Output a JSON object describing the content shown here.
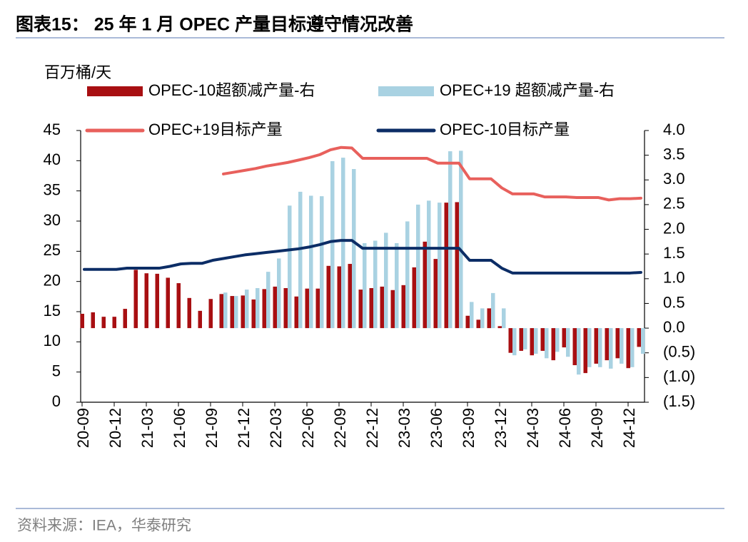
{
  "chart_data": {
    "type": "combo",
    "title": "图表15： 25 年 1 月 OPEC 产量目标遵守情况改善",
    "y_label": "百万桶/天",
    "source": "资料来源：IEA，华泰研究",
    "categories": [
      "20-09",
      null,
      null,
      "20-12",
      null,
      null,
      "21-03",
      null,
      null,
      "21-06",
      null,
      null,
      "21-09",
      null,
      null,
      "21-12",
      null,
      null,
      "22-03",
      null,
      null,
      "22-06",
      null,
      null,
      "22-09",
      null,
      null,
      "22-12",
      null,
      null,
      "23-03",
      null,
      null,
      "23-06",
      null,
      null,
      "23-09",
      null,
      null,
      "23-12",
      null,
      null,
      "24-03",
      null,
      null,
      "24-06",
      null,
      null,
      "24-09",
      null,
      null,
      "24-12",
      null
    ],
    "ylim": [
      0,
      45
    ],
    "yticks": [
      0,
      5,
      10,
      15,
      20,
      25,
      30,
      35,
      40,
      45
    ],
    "y2lim": [
      -1.5,
      4.0
    ],
    "y2ticks": [
      {
        "value": -1.5,
        "label": "(1.5)"
      },
      {
        "value": -1,
        "label": "(1.0)"
      },
      {
        "value": -0.5,
        "label": "(0.5)"
      },
      {
        "value": 0,
        "label": "0.0"
      },
      {
        "value": 0.5,
        "label": "0.5"
      },
      {
        "value": 1,
        "label": "1.0"
      },
      {
        "value": 1.5,
        "label": "1.5"
      },
      {
        "value": 2,
        "label": "2.0"
      },
      {
        "value": 2.5,
        "label": "2.5"
      },
      {
        "value": 3,
        "label": "3.0"
      },
      {
        "value": 3.5,
        "label": "3.5"
      },
      {
        "value": 4,
        "label": "4.0"
      }
    ],
    "series": [
      {
        "name": "OPEC-10超额减产量-右",
        "type": "bar",
        "axis": "y2",
        "color": "#a80f12",
        "values": [
          0.29,
          0.32,
          0.23,
          0.23,
          0.39,
          1.18,
          1.11,
          1.1,
          1.02,
          0.91,
          0.61,
          0.35,
          0.59,
          0.69,
          0.65,
          0.66,
          0.58,
          0.79,
          0.84,
          0.81,
          0.64,
          0.8,
          0.8,
          1.26,
          1.25,
          1.3,
          0.78,
          0.81,
          0.84,
          0.77,
          0.87,
          1.23,
          1.75,
          1.4,
          2.54,
          2.55,
          0.25,
          0.17,
          0.4,
          0.04,
          -0.5,
          -0.46,
          -0.55,
          -0.46,
          -0.65,
          -0.39,
          -0.75,
          -0.91,
          -0.72,
          -0.65,
          -0.61,
          -0.81,
          -0.38
        ]
      },
      {
        "name": "OPEC+19 超额减产量-右",
        "type": "bar",
        "axis": "y2",
        "color": "#a9d2e2",
        "values": [
          null,
          null,
          null,
          null,
          null,
          null,
          null,
          null,
          null,
          null,
          null,
          null,
          null,
          0.72,
          0.65,
          0.78,
          0.81,
          1.14,
          1.41,
          2.48,
          2.76,
          2.68,
          2.67,
          3.38,
          3.45,
          3.22,
          1.72,
          1.77,
          1.93,
          1.72,
          2.16,
          2.5,
          2.58,
          2.54,
          3.58,
          3.59,
          0.53,
          0.4,
          0.71,
          0.4,
          -0.55,
          -0.43,
          -0.52,
          -0.61,
          -0.48,
          -0.58,
          -0.94,
          -0.79,
          -0.79,
          -0.82,
          -0.72,
          -0.79,
          -0.52
        ]
      },
      {
        "name": "OPEC+19目标产量",
        "type": "line",
        "color": "#e8605c",
        "values": [
          null,
          null,
          null,
          null,
          null,
          null,
          null,
          null,
          null,
          null,
          null,
          null,
          null,
          37.8,
          38.1,
          38.4,
          38.7,
          39.1,
          39.4,
          39.7,
          40.1,
          40.5,
          41.0,
          41.8,
          42.2,
          42.1,
          40.4,
          40.4,
          40.4,
          40.4,
          40.4,
          40.4,
          40.4,
          39.6,
          39.6,
          39.6,
          37.0,
          37.0,
          37.0,
          35.5,
          34.5,
          34.5,
          34.5,
          34.0,
          34.0,
          34.0,
          33.9,
          33.9,
          33.9,
          33.5,
          33.7,
          33.7,
          33.8
        ]
      },
      {
        "name": "OPEC-10目标产量",
        "type": "line",
        "color": "#0c2d66",
        "values": [
          22.0,
          22.0,
          22.0,
          22.0,
          22.2,
          22.2,
          22.2,
          22.2,
          22.5,
          22.9,
          23.0,
          23.0,
          23.5,
          23.8,
          24.1,
          24.4,
          24.6,
          24.8,
          25.0,
          25.2,
          25.4,
          25.7,
          26.1,
          26.6,
          26.8,
          26.8,
          25.5,
          25.5,
          25.5,
          25.5,
          25.5,
          25.5,
          25.5,
          25.5,
          25.5,
          25.5,
          23.5,
          23.5,
          23.5,
          22.2,
          21.4,
          21.4,
          21.4,
          21.4,
          21.4,
          21.4,
          21.4,
          21.4,
          21.4,
          21.4,
          21.4,
          21.4,
          21.5
        ]
      }
    ]
  }
}
